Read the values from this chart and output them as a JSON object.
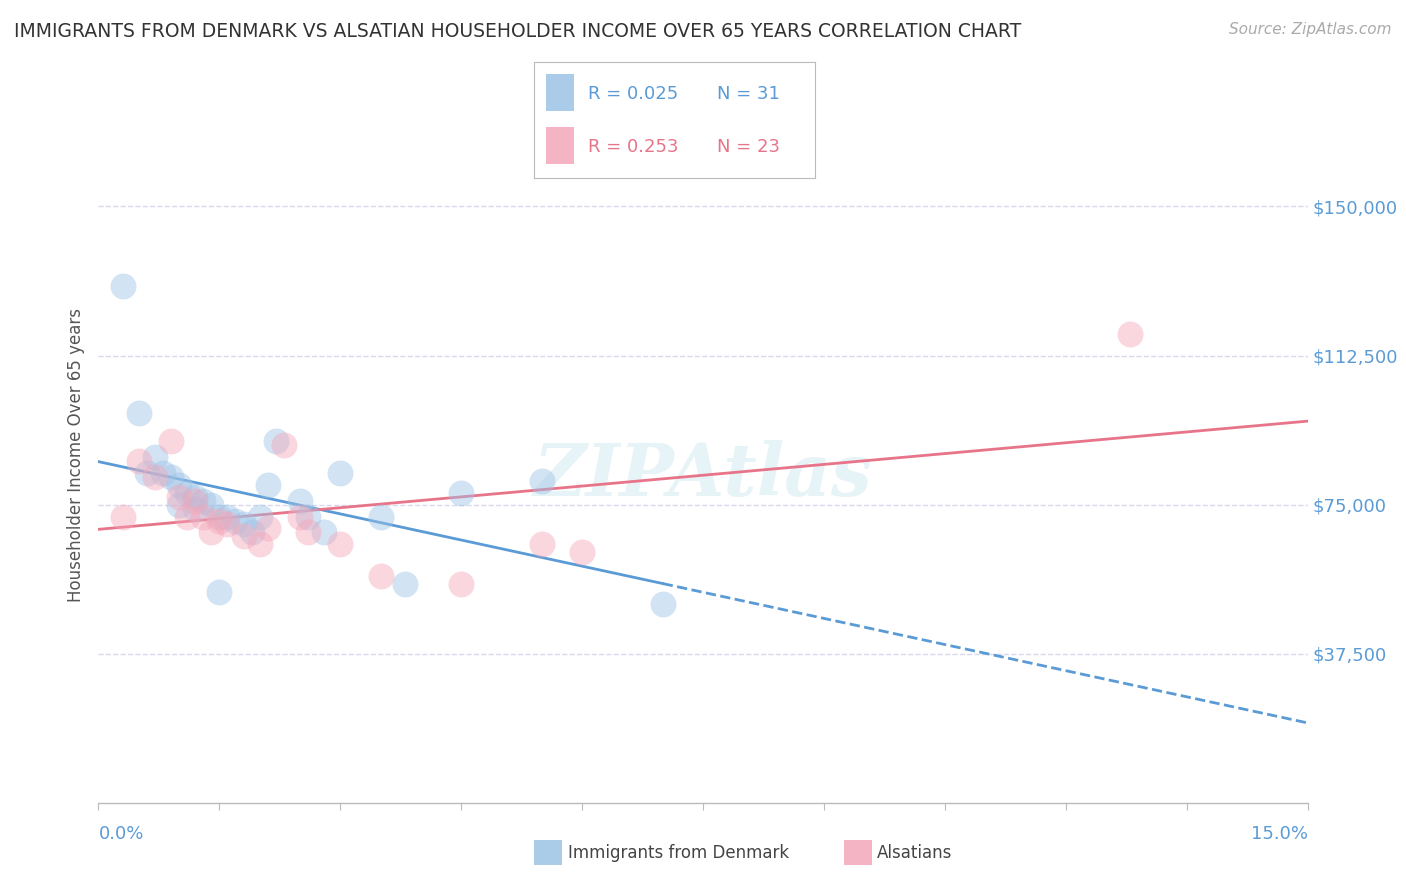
{
  "title": "IMMIGRANTS FROM DENMARK VS ALSATIAN HOUSEHOLDER INCOME OVER 65 YEARS CORRELATION CHART",
  "source": "Source: ZipAtlas.com",
  "ylabel": "Householder Income Over 65 years",
  "xlim": [
    0.0,
    15.0
  ],
  "ylim": [
    0,
    175000
  ],
  "yticks": [
    37500,
    75000,
    112500,
    150000
  ],
  "ytick_labels": [
    "$37,500",
    "$75,000",
    "$112,500",
    "$150,000"
  ],
  "watermark": "ZIPAtlas",
  "denmark_scatter": [
    [
      0.3,
      130000
    ],
    [
      0.5,
      98000
    ],
    [
      0.6,
      83000
    ],
    [
      0.7,
      87000
    ],
    [
      0.8,
      83000
    ],
    [
      0.9,
      82000
    ],
    [
      1.0,
      80000
    ],
    [
      1.0,
      75000
    ],
    [
      1.1,
      78000
    ],
    [
      1.2,
      77000
    ],
    [
      1.2,
      74000
    ],
    [
      1.3,
      76000
    ],
    [
      1.4,
      75000
    ],
    [
      1.5,
      72000
    ],
    [
      1.6,
      72000
    ],
    [
      1.7,
      71000
    ],
    [
      1.8,
      70000
    ],
    [
      1.9,
      68000
    ],
    [
      2.0,
      72000
    ],
    [
      2.1,
      80000
    ],
    [
      2.2,
      91000
    ],
    [
      2.5,
      76000
    ],
    [
      2.6,
      72000
    ],
    [
      2.8,
      68000
    ],
    [
      3.0,
      83000
    ],
    [
      3.5,
      72000
    ],
    [
      3.8,
      55000
    ],
    [
      4.5,
      78000
    ],
    [
      5.5,
      81000
    ],
    [
      7.0,
      50000
    ],
    [
      1.5,
      53000
    ]
  ],
  "alsatian_scatter": [
    [
      0.3,
      72000
    ],
    [
      0.5,
      86000
    ],
    [
      0.7,
      82000
    ],
    [
      0.9,
      91000
    ],
    [
      1.0,
      77000
    ],
    [
      1.1,
      72000
    ],
    [
      1.2,
      76000
    ],
    [
      1.3,
      72000
    ],
    [
      1.4,
      68000
    ],
    [
      1.5,
      71000
    ],
    [
      1.6,
      70000
    ],
    [
      1.8,
      67000
    ],
    [
      2.0,
      65000
    ],
    [
      2.1,
      69000
    ],
    [
      2.3,
      90000
    ],
    [
      2.5,
      72000
    ],
    [
      2.6,
      68000
    ],
    [
      3.0,
      65000
    ],
    [
      3.5,
      57000
    ],
    [
      5.5,
      65000
    ],
    [
      6.0,
      63000
    ],
    [
      12.8,
      118000
    ],
    [
      4.5,
      55000
    ]
  ],
  "denmark_line_color": "#5b9bd5",
  "alsatian_line_color": "#e8748a",
  "scatter_size": 350,
  "background_color": "#ffffff",
  "grid_color": "#d8d8ee",
  "tick_color": "#5b9bd5",
  "scatter_alpha": 0.45,
  "denmark_scatter_color": "#9dc3e6",
  "alsatian_scatter_color": "#f4a7b9",
  "legend_r1": "R = 0.025",
  "legend_n1": "N = 31",
  "legend_r2": "R = 0.253",
  "legend_n2": "N = 23",
  "dk_max_x": 7.5,
  "xlim_left_label": "0.0%",
  "xlim_right_label": "15.0%"
}
